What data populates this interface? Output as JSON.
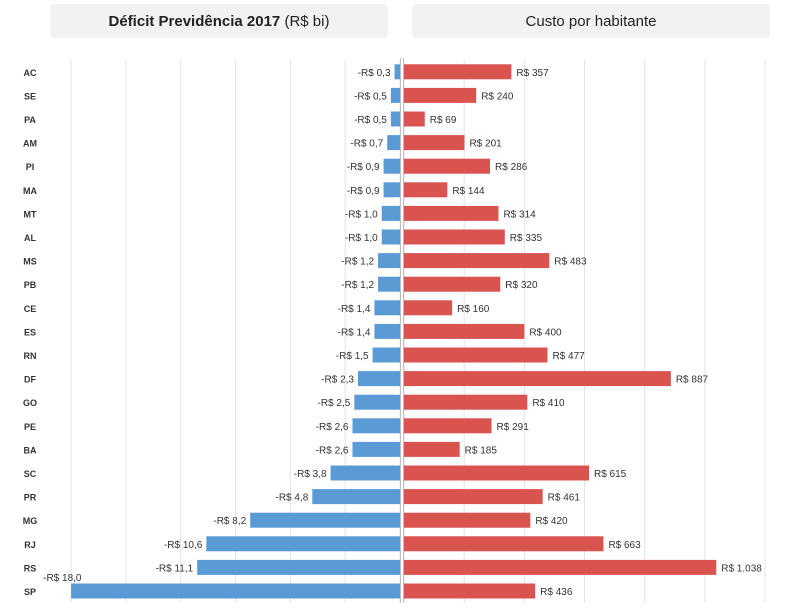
{
  "chart_data": [
    {
      "type": "bar",
      "orientation": "horizontal",
      "title_bold": "Déficit Previdência 2017",
      "title_unit": "(R$ bi)",
      "categories": [
        "AC",
        "SE",
        "PA",
        "AM",
        "PI",
        "MA",
        "MT",
        "AL",
        "MS",
        "PB",
        "CE",
        "ES",
        "RN",
        "DF",
        "GO",
        "PE",
        "BA",
        "SC",
        "PR",
        "MG",
        "RJ",
        "RS",
        "SP"
      ],
      "values": [
        -0.3,
        -0.5,
        -0.5,
        -0.7,
        -0.9,
        -0.9,
        -1.0,
        -1.0,
        -1.2,
        -1.2,
        -1.4,
        -1.4,
        -1.5,
        -2.3,
        -2.5,
        -2.6,
        -2.6,
        -3.8,
        -4.8,
        -8.2,
        -10.6,
        -11.1,
        -18.0
      ],
      "labels": [
        "-R$ 0,3",
        "-R$ 0,5",
        "-R$ 0,5",
        "-R$ 0,7",
        "-R$ 0,9",
        "-R$ 0,9",
        "-R$ 1,0",
        "-R$ 1,0",
        "-R$ 1,2",
        "-R$ 1,2",
        "-R$ 1,4",
        "-R$ 1,4",
        "-R$ 1,5",
        "-R$ 2,3",
        "-R$ 2,5",
        "-R$ 2,6",
        "-R$ 2,6",
        "-R$ 3,8",
        "-R$ 4,8",
        "-R$ 8,2",
        "-R$ 10,6",
        "-R$ 11,1",
        "-R$ 18,0"
      ],
      "xlim": [
        -18.5,
        0
      ],
      "grid": true,
      "color": "#5b9bd5"
    },
    {
      "type": "bar",
      "orientation": "horizontal",
      "title": "Custo por habitante",
      "categories": [
        "AC",
        "SE",
        "PA",
        "AM",
        "PI",
        "MA",
        "MT",
        "AL",
        "MS",
        "PB",
        "CE",
        "ES",
        "RN",
        "DF",
        "GO",
        "PE",
        "BA",
        "SC",
        "PR",
        "MG",
        "RJ",
        "RS",
        "SP"
      ],
      "values": [
        357,
        240,
        69,
        201,
        286,
        144,
        314,
        335,
        483,
        320,
        160,
        400,
        477,
        887,
        410,
        291,
        185,
        615,
        461,
        420,
        663,
        1038,
        436
      ],
      "labels": [
        "R$ 357",
        "R$ 240",
        "R$ 69",
        "R$ 201",
        "R$ 286",
        "R$ 144",
        "R$ 314",
        "R$ 335",
        "R$ 483",
        "R$ 320",
        "R$ 160",
        "R$ 400",
        "R$ 477",
        "R$ 887",
        "R$ 410",
        "R$ 291",
        "R$ 185",
        "R$ 615",
        "R$ 461",
        "R$ 420",
        "R$ 663",
        "R$ 1.038",
        "R$ 436"
      ],
      "xlim": [
        0,
        1200
      ],
      "grid": true,
      "color": "#d9534f"
    }
  ]
}
